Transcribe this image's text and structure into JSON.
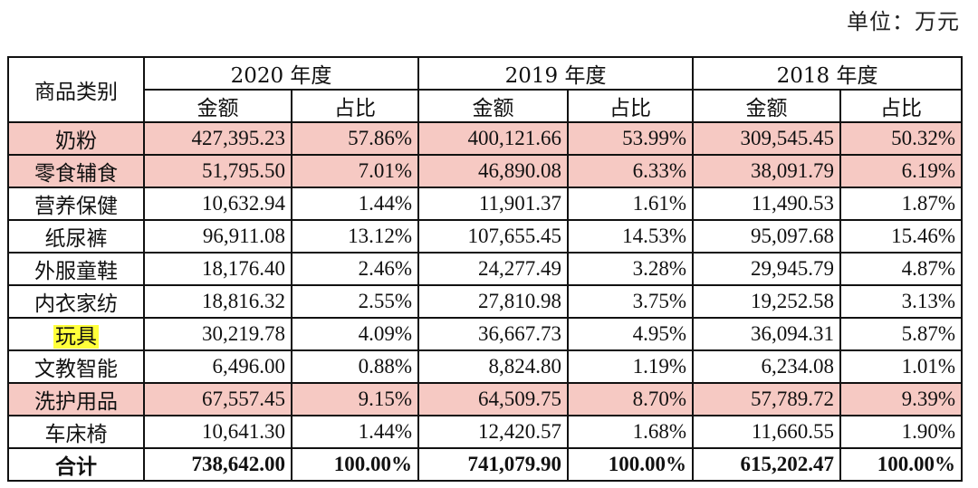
{
  "unit_label": "单位：万元",
  "header": {
    "category": "商品类别",
    "years": [
      "2020 年度",
      "2019 年度",
      "2018 年度"
    ],
    "amount": "金额",
    "ratio": "占比"
  },
  "rows": [
    {
      "name": "奶粉",
      "values": [
        "427,395.23",
        "57.86%",
        "400,121.66",
        "53.99%",
        "309,545.45",
        "50.32%"
      ],
      "highlight": "pink"
    },
    {
      "name": "零食辅食",
      "values": [
        "51,795.50",
        "7.01%",
        "46,890.08",
        "6.33%",
        "38,091.79",
        "6.19%"
      ],
      "highlight": "pink"
    },
    {
      "name": "营养保健",
      "values": [
        "10,632.94",
        "1.44%",
        "11,901.37",
        "1.61%",
        "11,490.53",
        "1.87%"
      ],
      "highlight": ""
    },
    {
      "name": "纸尿裤",
      "values": [
        "96,911.08",
        "13.12%",
        "107,655.45",
        "14.53%",
        "95,097.68",
        "15.46%"
      ],
      "highlight": ""
    },
    {
      "name": "外服童鞋",
      "values": [
        "18,176.40",
        "2.46%",
        "24,277.49",
        "3.28%",
        "29,945.79",
        "4.87%"
      ],
      "highlight": ""
    },
    {
      "name": "内衣家纺",
      "values": [
        "18,816.32",
        "2.55%",
        "27,810.98",
        "3.75%",
        "19,252.58",
        "3.13%"
      ],
      "highlight": ""
    },
    {
      "name": "玩具",
      "values": [
        "30,219.78",
        "4.09%",
        "36,667.73",
        "4.95%",
        "36,094.31",
        "5.87%"
      ],
      "highlight": "yellow-label"
    },
    {
      "name": "文教智能",
      "values": [
        "6,496.00",
        "0.88%",
        "8,824.80",
        "1.19%",
        "6,234.08",
        "1.01%"
      ],
      "highlight": ""
    },
    {
      "name": "洗护用品",
      "values": [
        "67,557.45",
        "9.15%",
        "64,509.75",
        "8.70%",
        "57,789.72",
        "9.39%"
      ],
      "highlight": "pink"
    },
    {
      "name": "车床椅",
      "values": [
        "10,641.30",
        "1.44%",
        "12,420.57",
        "1.68%",
        "11,660.55",
        "1.90%"
      ],
      "highlight": ""
    }
  ],
  "total": {
    "name": "合计",
    "values": [
      "738,642.00",
      "100.00%",
      "741,079.90",
      "100.00%",
      "615,202.47",
      "100.00%"
    ]
  },
  "colors": {
    "pink_highlight": "#f6c9c3",
    "yellow_highlight": "#ffff3a"
  }
}
